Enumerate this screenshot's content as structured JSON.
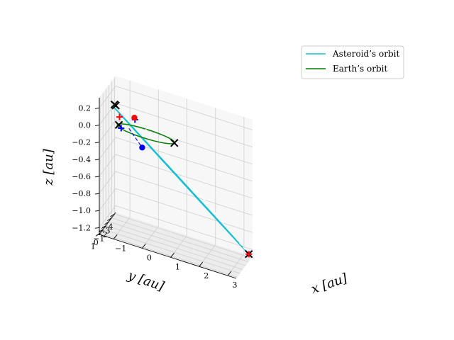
{
  "chart_data": {
    "type": "line",
    "projection": "3d",
    "title": "",
    "legend": {
      "placement": "top-right",
      "entries": [
        {
          "label": "Asteroid’s orbit",
          "color": "#17becf"
        },
        {
          "label": "Earth’s orbit",
          "color": "#008000"
        }
      ]
    },
    "axes": {
      "x": {
        "label": "x [au]",
        "range": [
          -1.5,
          3.3
        ],
        "ticks": [
          -1,
          0,
          1,
          2,
          3
        ],
        "tick_labels": [
          "−1",
          "0",
          "1",
          "2",
          "3"
        ]
      },
      "y": {
        "label": "y [au]",
        "range": [
          -4.4,
          1.3
        ],
        "ticks": [
          1,
          0,
          -1,
          -2,
          -3,
          -4
        ],
        "tick_labels": [
          "1",
          "0",
          "−1",
          "−2",
          "−3",
          "−4"
        ]
      },
      "z": {
        "label": "z [au]",
        "range": [
          -1.28,
          0.32
        ],
        "ticks": [
          0.2,
          0.0,
          -0.2,
          -0.4,
          -0.6,
          -0.8,
          -1.0,
          -1.2
        ],
        "tick_labels": [
          "0.2",
          "0.0",
          "−0.2",
          "−0.4",
          "−0.6",
          "−0.8",
          "−1.0",
          "−1.2"
        ]
      },
      "grid": true
    },
    "series": [
      {
        "name": "Asteroid’s orbit",
        "color": "#17becf",
        "style": "solid",
        "kind": "ellipse",
        "center": [
          1.07,
          -1.6,
          -0.5
        ],
        "u": [
          2.13,
          -2.5,
          -0.75
        ],
        "v": [
          0.04,
          0.04,
          0.0
        ]
      },
      {
        "name": "Earth’s orbit",
        "color": "#008000",
        "style": "solid",
        "kind": "circle",
        "center": [
          0,
          0,
          0
        ],
        "radius": 1.0
      }
    ],
    "paths": [
      {
        "color": "#ffffff",
        "style": "dashed",
        "points": [
          [
            3.2,
            -4.1,
            -1.25
          ],
          [
            0.0,
            0.55,
            0.1
          ]
        ]
      },
      {
        "color": "#0000ff",
        "style": "dashed",
        "points": [
          [
            -0.5,
            0.9,
            0.05
          ],
          [
            -0.12,
            0.08,
            -0.17
          ]
        ]
      }
    ],
    "markers": [
      {
        "symbol": "x",
        "color": "#000000",
        "point": [
          -1.0,
          0.98,
          0.28
        ]
      },
      {
        "symbol": "x",
        "color": "#000000",
        "point": [
          -0.96,
          0.92,
          0.27
        ]
      },
      {
        "symbol": "x",
        "color": "#000000",
        "point": [
          -0.95,
          -0.05,
          0.0
        ]
      },
      {
        "symbol": "x",
        "color": "#000000",
        "point": [
          1.0,
          0.0,
          0.0
        ]
      },
      {
        "symbol": "x",
        "color": "#000000",
        "point": [
          3.2,
          -4.1,
          -1.25
        ]
      },
      {
        "symbol": "+",
        "color": "#ff0000",
        "point": [
          -0.92,
          0.02,
          0.1
        ]
      },
      {
        "symbol": "+",
        "color": "#ff0000",
        "point": [
          3.2,
          -4.1,
          -1.25
        ]
      },
      {
        "symbol": "+",
        "color": "#0000ff",
        "point": [
          -0.87,
          -0.05,
          -0.03
        ]
      },
      {
        "symbol": "+",
        "color": "#0000ff",
        "point": [
          -0.3,
          0.8,
          0.17
        ]
      },
      {
        "symbol": "o",
        "color": "#ff0000",
        "point": [
          -0.32,
          0.8,
          0.19
        ]
      },
      {
        "symbol": "o",
        "color": "#0000ff",
        "point": [
          -0.12,
          0.08,
          -0.17
        ]
      }
    ]
  }
}
